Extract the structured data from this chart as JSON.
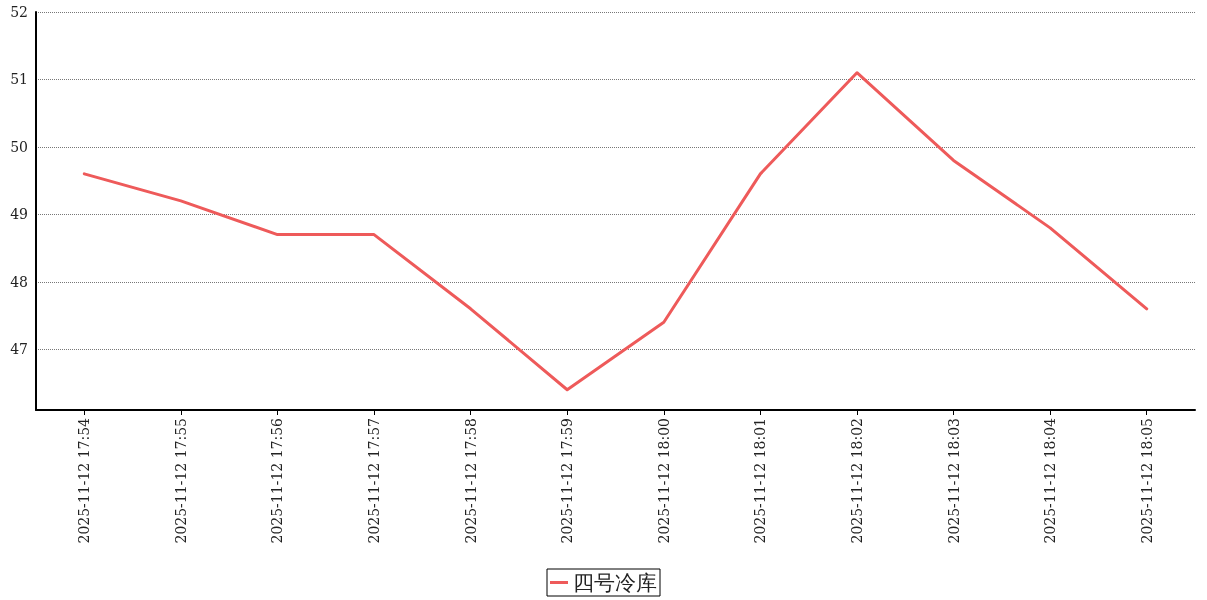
{
  "chart_data": {
    "type": "line",
    "categories": [
      "2025-11-12 17:54",
      "2025-11-12 17:55",
      "2025-11-12 17:56",
      "2025-11-12 17:57",
      "2025-11-12 17:58",
      "2025-11-12 17:59",
      "2025-11-12 18:00",
      "2025-11-12 18:01",
      "2025-11-12 18:02",
      "2025-11-12 18:03",
      "2025-11-12 18:04",
      "2025-11-12 18:05"
    ],
    "series": [
      {
        "name": "四号冷库",
        "color": "#ee5a5a",
        "values": [
          49.6,
          49.2,
          48.7,
          48.7,
          47.6,
          46.4,
          47.4,
          49.6,
          51.1,
          49.8,
          48.8,
          47.6
        ]
      }
    ],
    "ylim": [
      46.1,
      52
    ],
    "yticks": [
      47,
      48,
      49,
      50,
      51,
      52
    ],
    "grid": "y",
    "legend": "bottom",
    "marker": "none",
    "line_style": "solid"
  }
}
